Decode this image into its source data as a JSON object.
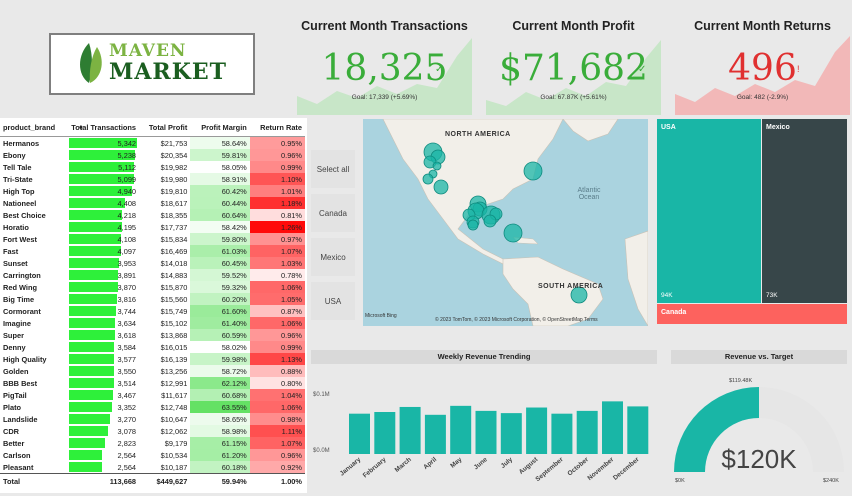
{
  "logo": {
    "line1": "MAVEN",
    "line2": "MARKET"
  },
  "kpis": [
    {
      "title": "Current Month Transactions",
      "value": "18,325",
      "goal": "Goal: 17,339 (+5.69%)",
      "status": "up",
      "color": "#3aad3a",
      "area_color": "#c8e6c8"
    },
    {
      "title": "Current Month Profit",
      "value": "$71,682",
      "goal": "Goal: 67.87K (+5.61%)",
      "status": "up",
      "color": "#3aad3a",
      "area_color": "#c8e6c8"
    },
    {
      "title": "Current Month Returns",
      "value": "496",
      "goal": "Goal: 482 (-2.9%)",
      "status": "down",
      "color": "#e03030",
      "area_color": "#f2b8b8"
    }
  ],
  "table": {
    "headers": [
      "product_brand",
      "Total Transactions",
      "Total Profit",
      "Profit Margin",
      "Return Rate"
    ],
    "rows": [
      [
        "Hermanos",
        "5,342",
        "$21,753",
        "58.64%",
        "0.95%"
      ],
      [
        "Ebony",
        "5,238",
        "$20,354",
        "59.81%",
        "0.96%"
      ],
      [
        "Tell Tale",
        "5,112",
        "$19,982",
        "58.05%",
        "0.99%"
      ],
      [
        "Tri-State",
        "5,099",
        "$19,980",
        "58.91%",
        "1.10%"
      ],
      [
        "High Top",
        "4,940",
        "$19,810",
        "60.42%",
        "1.01%"
      ],
      [
        "Nationeel",
        "4,408",
        "$18,617",
        "60.44%",
        "1.18%"
      ],
      [
        "Best Choice",
        "4,218",
        "$18,355",
        "60.64%",
        "0.81%"
      ],
      [
        "Horatio",
        "4,195",
        "$17,737",
        "58.42%",
        "1.26%"
      ],
      [
        "Fort West",
        "4,108",
        "$15,834",
        "59.80%",
        "0.97%"
      ],
      [
        "Fast",
        "4,097",
        "$16,469",
        "61.03%",
        "1.07%"
      ],
      [
        "Sunset",
        "3,953",
        "$14,018",
        "60.45%",
        "1.03%"
      ],
      [
        "Carrington",
        "3,891",
        "$14,883",
        "59.52%",
        "0.78%"
      ],
      [
        "Red Wing",
        "3,870",
        "$15,870",
        "59.32%",
        "1.06%"
      ],
      [
        "Big Time",
        "3,816",
        "$15,560",
        "60.20%",
        "1.05%"
      ],
      [
        "Cormorant",
        "3,744",
        "$15,749",
        "61.60%",
        "0.87%"
      ],
      [
        "Imagine",
        "3,634",
        "$15,102",
        "61.40%",
        "1.06%"
      ],
      [
        "Super",
        "3,618",
        "$13,868",
        "60.59%",
        "0.96%"
      ],
      [
        "Denny",
        "3,584",
        "$16,015",
        "58.02%",
        "0.99%"
      ],
      [
        "High Quality",
        "3,577",
        "$16,139",
        "59.98%",
        "1.13%"
      ],
      [
        "Golden",
        "3,550",
        "$13,256",
        "58.72%",
        "0.88%"
      ],
      [
        "BBB Best",
        "3,514",
        "$12,991",
        "62.12%",
        "0.80%"
      ],
      [
        "PigTail",
        "3,467",
        "$11,617",
        "60.68%",
        "1.04%"
      ],
      [
        "Plato",
        "3,352",
        "$12,748",
        "63.55%",
        "1.06%"
      ],
      [
        "Landslide",
        "3,270",
        "$10,647",
        "58.65%",
        "0.98%"
      ],
      [
        "CDR",
        "3,078",
        "$12,062",
        "58.98%",
        "1.11%"
      ],
      [
        "Better",
        "2,823",
        "$9,179",
        "61.15%",
        "1.07%"
      ],
      [
        "Carlson",
        "2,564",
        "$10,534",
        "61.20%",
        "0.96%"
      ],
      [
        "Pleasant",
        "2,564",
        "$10,187",
        "60.18%",
        "0.92%"
      ]
    ],
    "total": [
      "Total",
      "113,668",
      "$449,627",
      "59.94%",
      "1.00%"
    ]
  },
  "slicer": {
    "items": [
      "Select all",
      "Canada",
      "Mexico",
      "USA"
    ]
  },
  "map": {
    "labels": {
      "north_america": "NORTH AMERICA",
      "south_america": "SOUTH AMERICA",
      "ocean": "Atlantic\nOcean"
    },
    "bing": "Microsoft Bing",
    "credits": "© 2023 TomTom, © 2023 Microsoft Corporation, © OpenStreetMap  Terms"
  },
  "treemap": {
    "tiles": [
      {
        "label": "USA",
        "value": "94K",
        "color": "#19b6a6"
      },
      {
        "label": "Mexico",
        "value": "73K",
        "color": "#374649"
      },
      {
        "label": "Canada",
        "value": "",
        "color": "#fd625e"
      }
    ]
  },
  "weekly": {
    "title": "Weekly Revenue Trending",
    "ylabels": [
      "$0.1M",
      "$0.0M"
    ],
    "chart_data": {
      "type": "bar",
      "title": "Weekly Revenue Trending",
      "categories": [
        "January",
        "February",
        "March",
        "April",
        "May",
        "June",
        "July",
        "August",
        "September",
        "October",
        "November",
        "December"
      ],
      "values": [
        0.072,
        0.075,
        0.084,
        0.07,
        0.086,
        0.077,
        0.073,
        0.083,
        0.072,
        0.077,
        0.094,
        0.085
      ],
      "ylim": [
        0,
        0.1
      ],
      "color": "#19b6a6"
    }
  },
  "gauge": {
    "title": "Revenue vs. Target",
    "value_label": "$120K",
    "target_label": "$119.48K",
    "min_label": "$0K",
    "max_label": "$240K",
    "value": 120,
    "max": 240,
    "color": "#19b6a6"
  }
}
